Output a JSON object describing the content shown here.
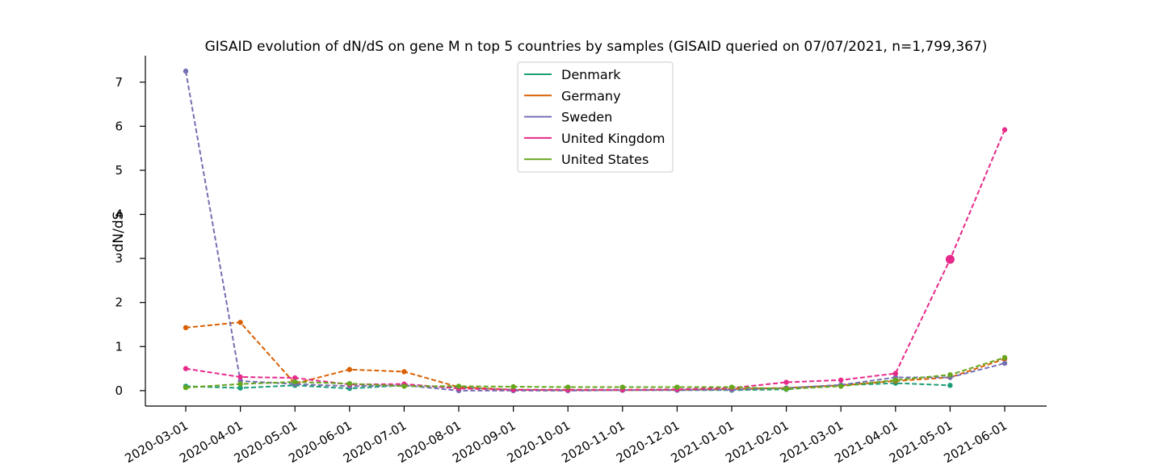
{
  "chart_data": {
    "type": "line",
    "title": "GISAID evolution of dN/dS on gene M n top 5 countries by samples (GISAID queried on 07/07/2021, n=1,799,367)",
    "xlabel": "",
    "ylabel": "dN/dS",
    "ylim": [
      -0.35,
      7.6
    ],
    "yticks": [
      0,
      1,
      2,
      3,
      4,
      5,
      6,
      7
    ],
    "x": [
      "2020-03-01",
      "2020-04-01",
      "2020-05-01",
      "2020-06-01",
      "2020-07-01",
      "2020-08-01",
      "2020-09-01",
      "2020-10-01",
      "2020-11-01",
      "2020-12-01",
      "2021-01-01",
      "2021-02-01",
      "2021-03-01",
      "2021-04-01",
      "2021-05-01",
      "2021-06-01"
    ],
    "grid": false,
    "legend_position": "top-center",
    "line_style": "dashed with dot markers",
    "series": [
      {
        "name": "Denmark",
        "color": "#1b9e77",
        "values": [
          0.1,
          0.06,
          0.12,
          0.05,
          0.12,
          0.07,
          0.02,
          0.01,
          0.01,
          0.01,
          0.01,
          0.03,
          0.12,
          0.17,
          0.12,
          null
        ]
      },
      {
        "name": "Germany",
        "color": "#d95f02",
        "values": [
          1.43,
          1.55,
          0.16,
          0.48,
          0.43,
          0.08,
          0.02,
          0.01,
          0.01,
          0.02,
          0.04,
          0.06,
          0.12,
          0.22,
          0.3,
          0.72
        ]
      },
      {
        "name": "Sweden",
        "color": "#7570b3",
        "values": [
          7.25,
          0.22,
          0.15,
          0.1,
          0.12,
          0.0,
          0.0,
          0.0,
          0.01,
          0.01,
          0.02,
          0.06,
          0.13,
          0.3,
          0.3,
          0.62
        ]
      },
      {
        "name": "United Kingdom",
        "color": "#e7298a",
        "values": [
          0.5,
          0.31,
          0.29,
          0.14,
          0.15,
          0.05,
          0.02,
          0.02,
          0.02,
          0.03,
          0.06,
          0.19,
          0.24,
          0.39,
          2.98,
          5.92
        ]
      },
      {
        "name": "United States",
        "color": "#66a61e",
        "values": [
          0.07,
          0.15,
          0.2,
          0.16,
          0.1,
          0.1,
          0.09,
          0.08,
          0.08,
          0.08,
          0.08,
          0.04,
          0.1,
          0.24,
          0.36,
          0.75
        ]
      }
    ],
    "highlighted_point": {
      "series": "United Kingdom",
      "x": "2021-05-01",
      "value": 2.98
    }
  }
}
